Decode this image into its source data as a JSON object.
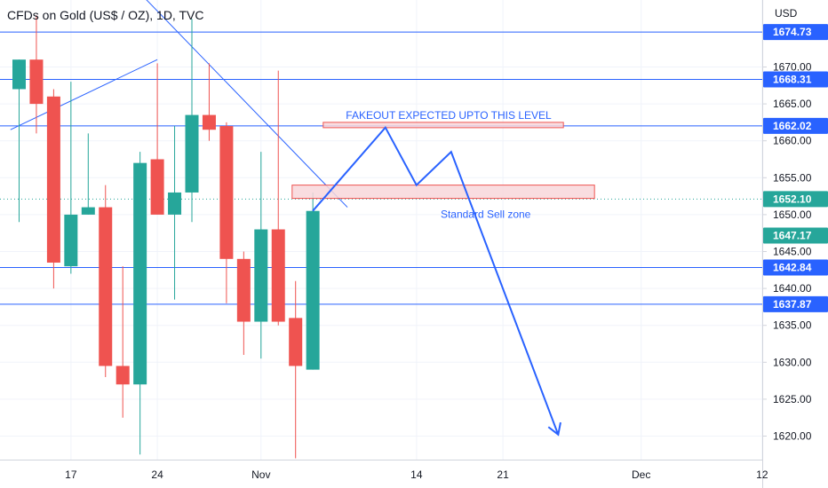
{
  "header": {
    "title": "CFDs on Gold (US$ / OZ), 1D, TVC"
  },
  "chart_data": {
    "type": "candlestick",
    "currency_label": "USD",
    "y_ticks": [
      1620.0,
      1625.0,
      1630.0,
      1635.0,
      1640.0,
      1645.0,
      1650.0,
      1655.0,
      1660.0,
      1665.0,
      1670.0
    ],
    "x_ticks": [
      {
        "label": "17",
        "slot": 3
      },
      {
        "label": "24",
        "slot": 8
      },
      {
        "label": "Nov",
        "slot": 14
      },
      {
        "label": "14",
        "slot": 23
      },
      {
        "label": "21",
        "slot": 28
      },
      {
        "label": "Dec",
        "slot": 36
      },
      {
        "label": "12",
        "slot": 43
      }
    ],
    "candles": [
      {
        "slot": 0,
        "o": 1667.0,
        "h": 1671.0,
        "l": 1649.0,
        "c": 1671.0
      },
      {
        "slot": 1,
        "o": 1671.0,
        "h": 1677.0,
        "l": 1661.0,
        "c": 1665.0
      },
      {
        "slot": 2,
        "o": 1666.0,
        "h": 1667.0,
        "l": 1640.0,
        "c": 1643.5
      },
      {
        "slot": 3,
        "o": 1643.0,
        "h": 1668.0,
        "l": 1642.0,
        "c": 1650.0
      },
      {
        "slot": 4,
        "o": 1650.0,
        "h": 1661.0,
        "l": 1650.0,
        "c": 1651.0
      },
      {
        "slot": 5,
        "o": 1651.0,
        "h": 1654.0,
        "l": 1628.0,
        "c": 1629.5
      },
      {
        "slot": 6,
        "o": 1629.5,
        "h": 1643.0,
        "l": 1622.5,
        "c": 1627.0
      },
      {
        "slot": 7,
        "o": 1627.0,
        "h": 1658.5,
        "l": 1617.5,
        "c": 1657.0
      },
      {
        "slot": 8,
        "o": 1657.5,
        "h": 1670.5,
        "l": 1650.0,
        "c": 1650.0
      },
      {
        "slot": 9,
        "o": 1650.0,
        "h": 1662.0,
        "l": 1638.5,
        "c": 1653.0
      },
      {
        "slot": 10,
        "o": 1653.0,
        "h": 1676.5,
        "l": 1649.0,
        "c": 1663.5
      },
      {
        "slot": 11,
        "o": 1663.5,
        "h": 1670.5,
        "l": 1660.0,
        "c": 1661.5
      },
      {
        "slot": 12,
        "o": 1662.0,
        "h": 1662.5,
        "l": 1638.0,
        "c": 1644.0
      },
      {
        "slot": 13,
        "o": 1644.0,
        "h": 1645.0,
        "l": 1631.0,
        "c": 1635.5
      },
      {
        "slot": 14,
        "o": 1635.5,
        "h": 1658.5,
        "l": 1630.5,
        "c": 1648.0
      },
      {
        "slot": 15,
        "o": 1648.0,
        "h": 1669.5,
        "l": 1635.0,
        "c": 1635.5
      },
      {
        "slot": 16,
        "o": 1636.0,
        "h": 1641.0,
        "l": 1617.0,
        "c": 1629.5
      },
      {
        "slot": 17,
        "o": 1629.0,
        "h": 1653.0,
        "l": 1629.0,
        "c": 1650.5
      }
    ],
    "horizontal_levels": [
      1674.73,
      1668.31,
      1662.02,
      1642.84,
      1637.87
    ],
    "price_badges": [
      {
        "value": "1674.73",
        "price": 1674.73,
        "color": "#2962ff"
      },
      {
        "value": "1668.31",
        "price": 1668.31,
        "color": "#2962ff"
      },
      {
        "value": "1662.02",
        "price": 1662.02,
        "color": "#2962ff"
      },
      {
        "value": "1652.10",
        "price": 1652.1,
        "color": "#26a69a"
      },
      {
        "value": "1647.17",
        "price": 1647.17,
        "color": "#26a69a"
      },
      {
        "value": "1642.84",
        "price": 1642.84,
        "color": "#2962ff"
      },
      {
        "value": "1637.87",
        "price": 1637.87,
        "color": "#2962ff"
      }
    ],
    "current_price": 1652.1,
    "zones": [
      {
        "label": "FAKEOUT EXPECTED UPTO THIS LEVEL",
        "slot_from": 17.6,
        "slot_to": 31.5,
        "price_top": 1662.5,
        "price_bottom": 1662.0,
        "label_position": "above"
      },
      {
        "label": "Standard Sell zone",
        "slot_from": 15.8,
        "slot_to": 33.3,
        "price_top": 1654.0,
        "price_bottom": 1652.2,
        "label_position": "below-right"
      }
    ],
    "projection_path": [
      {
        "slot": 17.0,
        "price": 1650.5
      },
      {
        "slot": 21.2,
        "price": 1661.8
      },
      {
        "slot": 23.0,
        "price": 1654.0
      },
      {
        "slot": 25.0,
        "price": 1658.5
      },
      {
        "slot": 31.2,
        "price": 1620.2
      }
    ],
    "trendlines": [
      {
        "from": {
          "slot": -0.5,
          "price": 1661.5
        },
        "to": {
          "slot": 8.0,
          "price": 1671.0
        }
      },
      {
        "from": {
          "slot": 7.0,
          "price": 1680.0
        },
        "to": {
          "slot": 19.0,
          "price": 1651.0
        }
      }
    ],
    "colors": {
      "up": "#26a69a",
      "down": "#ef5350",
      "level_line": "#2962ff",
      "zone_fill": "#f8d7da",
      "zone_border": "#ef5350",
      "projection": "#2962ff",
      "grid": "#f0f3fa",
      "axis_border": "#d1d4dc",
      "text": "#131722"
    }
  }
}
